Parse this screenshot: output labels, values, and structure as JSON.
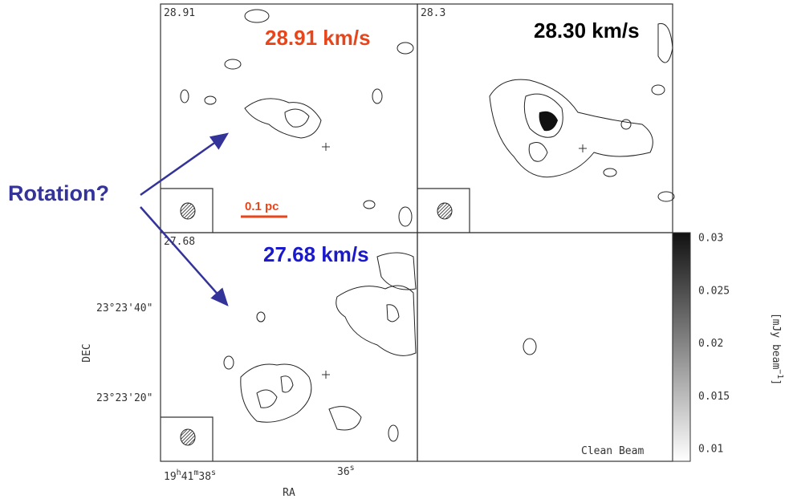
{
  "annotation": "Rotation?",
  "panels": [
    {
      "channel": "28.91",
      "velocity": "28.91 km/s"
    },
    {
      "channel": "28.3",
      "velocity": "28.30 km/s"
    },
    {
      "channel": "27.68",
      "velocity": "27.68 km/s"
    },
    {
      "beam_label": "Clean Beam"
    }
  ],
  "scale_bar": "0.1 pc",
  "axes": {
    "x_label": "RA",
    "y_label": "DEC",
    "x_ticks": [
      {
        "parts": [
          "19",
          "h",
          "41",
          "m",
          "38",
          "s"
        ]
      },
      {
        "parts": [
          "36",
          "s"
        ]
      }
    ],
    "y_ticks": [
      "23°23'40\"",
      "23°23'20\""
    ]
  },
  "colorbar": {
    "label_parts": [
      "[mJy beam",
      "−1",
      "]"
    ],
    "ticks": [
      "0.03",
      "0.025",
      "0.02",
      "0.015",
      "0.01"
    ]
  }
}
